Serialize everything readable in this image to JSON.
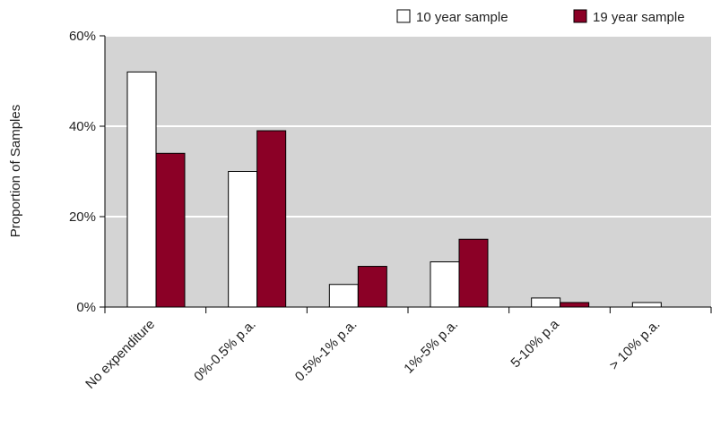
{
  "chart_data": {
    "type": "bar",
    "title": "",
    "xlabel": "",
    "ylabel": "Proportion of Samples",
    "ylim": [
      0,
      60
    ],
    "yticks": [
      0,
      20,
      40,
      60
    ],
    "ytick_labels": [
      "0%",
      "20%",
      "40%",
      "60%"
    ],
    "categories": [
      "No expenditure",
      "0%-0.5% p.a.",
      "0.5%-1% p.a.",
      "1%-5% p.a.",
      "5-10% p.a",
      "> 10% p.a."
    ],
    "series": [
      {
        "name": "10 year sample",
        "values": [
          52,
          30,
          5,
          10,
          2,
          1
        ]
      },
      {
        "name": "19 year sample",
        "values": [
          34,
          39,
          9,
          15,
          1,
          0
        ]
      }
    ],
    "grid": true,
    "legend_position": "top-right",
    "colors": {
      "plot_background": "#d4d4d4",
      "gridline": "#ffffff",
      "series_10_year": "#ffffff",
      "series_19_year": "#8b0026",
      "bar_stroke": "#000000"
    }
  }
}
